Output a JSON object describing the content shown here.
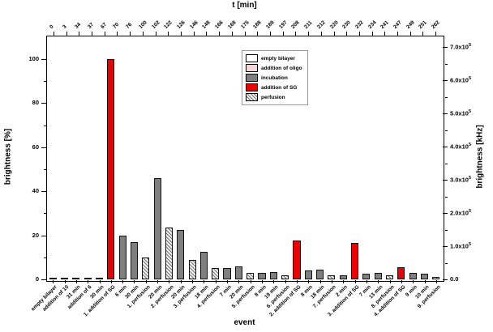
{
  "chart_data": {
    "type": "bar",
    "title": "t [min]",
    "xlabel": "event",
    "ylabel_left": "brightness [%]",
    "ylabel_right": "brightness [kHz]",
    "grid": false,
    "legend_position": "upper-center",
    "ylim_left": [
      0,
      110.3
    ],
    "ylim_right": [
      0,
      732000
    ],
    "left_tick_values": [
      0,
      20,
      40,
      60,
      80,
      100
    ],
    "left_minor_tick_values": [
      10,
      30,
      50,
      70,
      90
    ],
    "right_tick_values": [
      0,
      100000,
      200000,
      300000,
      400000,
      500000,
      600000,
      700000
    ],
    "right_tick_labels": [
      "0.0",
      "1.0x10^5",
      "2.0x10^5",
      "3.0x10^5",
      "4.0x10^5",
      "5.0x10^5",
      "6.0x10^5",
      "7.0x10^5"
    ],
    "top_tick_labels": [
      "0",
      "3",
      "34",
      "37",
      "67",
      "70",
      "76",
      "100",
      "102",
      "122",
      "126",
      "146",
      "148",
      "166",
      "168",
      "175",
      "188",
      "189",
      "197",
      "208",
      "211",
      "212",
      "220",
      "230",
      "232",
      "234",
      "241",
      "247",
      "249",
      "251",
      "262"
    ],
    "categories": [
      "empty bilayer",
      "addition of 10",
      "31 min",
      "addition of 6",
      "30 min",
      "1. addition of SG",
      "6 min",
      "30 min",
      "1. perfusion",
      "20 min",
      "2. perfusion",
      "20 min",
      "3. perfusion",
      "18 min",
      "4. perfusion",
      "7 min",
      "20 min",
      "5. perfusion",
      "8 min",
      "19 min",
      "6. perfusion",
      "2. addition of SG",
      "8 min",
      "18 min",
      "7. perfusion",
      "2 min",
      "3. addition of SG",
      "7 min",
      "13 min",
      "8. perfusion",
      "4. addition of SG",
      "9 min",
      "10 min",
      "9. perfusion"
    ],
    "bar_types": [
      "empty",
      "oligo",
      "incubation",
      "oligo",
      "incubation",
      "sg",
      "incubation",
      "incubation",
      "perfusion",
      "incubation",
      "perfusion",
      "incubation",
      "perfusion",
      "incubation",
      "perfusion",
      "incubation",
      "incubation",
      "perfusion",
      "incubation",
      "incubation",
      "perfusion",
      "sg",
      "incubation",
      "incubation",
      "perfusion",
      "incubation",
      "sg",
      "incubation",
      "incubation",
      "perfusion",
      "sg",
      "incubation",
      "incubation",
      "perfusion"
    ],
    "series": [
      {
        "name": "brightness",
        "values": [
          0.4,
          0.4,
          0.4,
          0.5,
          0.6,
          100,
          20,
          17,
          10,
          46,
          23.5,
          22.5,
          9,
          12.5,
          5,
          5,
          6,
          3,
          3,
          3.5,
          2,
          17.5,
          4,
          4.5,
          2,
          2,
          16.5,
          2.5,
          3,
          2,
          5.5,
          3,
          2.5,
          1
        ]
      }
    ]
  },
  "legend": {
    "items": [
      {
        "label": "empty bilayer",
        "type": "empty"
      },
      {
        "label": "addition of oligo",
        "type": "oligo"
      },
      {
        "label": "incubation",
        "type": "incubation"
      },
      {
        "label": "addition of SG",
        "type": "sg"
      },
      {
        "label": "perfusion",
        "type": "perfusion"
      }
    ]
  },
  "colors": {
    "empty": "#ffffff",
    "oligo": "#f7d7d7",
    "incubation": "#7f7f7f",
    "sg": "#ee0000",
    "perfusion_bg": "#f0f0f0",
    "perfusion_line": "#777777",
    "axis": "#000000"
  }
}
